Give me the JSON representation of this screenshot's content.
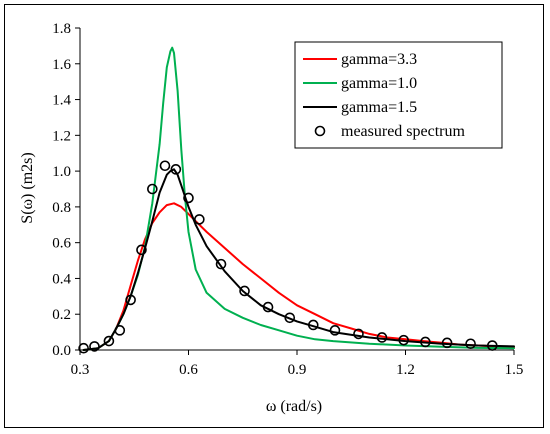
{
  "chart_data": {
    "type": "line",
    "title": "",
    "xlabel": "ω (rad/s)",
    "ylabel": "S(ω)  (m2s)",
    "xlim": [
      0.3,
      1.5
    ],
    "ylim": [
      0.0,
      1.8
    ],
    "xticks": [
      0.3,
      0.6,
      0.9,
      1.2,
      1.5
    ],
    "xtick_labels": [
      "0.3",
      "0.6",
      "0.9",
      "1.2",
      "1.5"
    ],
    "yticks": [
      0.0,
      0.2,
      0.4,
      0.6,
      0.8,
      1.0,
      1.2,
      1.4,
      1.6,
      1.8
    ],
    "ytick_labels": [
      "0.0",
      "0.2",
      "0.4",
      "0.6",
      "0.8",
      "1.0",
      "1.2",
      "1.4",
      "1.6",
      "1.8"
    ],
    "grid": false,
    "legend_position": "top-right",
    "series": [
      {
        "name": "gamma=3.3",
        "color": "#ff0000",
        "style": "line",
        "x": [
          0.31,
          0.35,
          0.38,
          0.4,
          0.42,
          0.44,
          0.46,
          0.48,
          0.5,
          0.52,
          0.54,
          0.56,
          0.58,
          0.6,
          0.62,
          0.65,
          0.7,
          0.75,
          0.8,
          0.85,
          0.9,
          0.95,
          1.0,
          1.05,
          1.1,
          1.15,
          1.2,
          1.25,
          1.3,
          1.35,
          1.4,
          1.45,
          1.5
        ],
        "y": [
          0.0,
          0.01,
          0.05,
          0.12,
          0.22,
          0.36,
          0.5,
          0.62,
          0.71,
          0.77,
          0.81,
          0.82,
          0.8,
          0.76,
          0.72,
          0.66,
          0.57,
          0.48,
          0.4,
          0.32,
          0.25,
          0.2,
          0.15,
          0.12,
          0.09,
          0.07,
          0.06,
          0.05,
          0.04,
          0.03,
          0.025,
          0.02,
          0.015
        ]
      },
      {
        "name": "gamma=1.0",
        "color": "#00b050",
        "style": "line",
        "x": [
          0.31,
          0.35,
          0.38,
          0.4,
          0.42,
          0.44,
          0.46,
          0.48,
          0.5,
          0.52,
          0.53,
          0.54,
          0.55,
          0.555,
          0.56,
          0.57,
          0.58,
          0.59,
          0.6,
          0.62,
          0.65,
          0.7,
          0.75,
          0.8,
          0.85,
          0.9,
          0.95,
          1.0,
          1.1,
          1.2,
          1.3,
          1.4,
          1.5
        ],
        "y": [
          0.0,
          0.01,
          0.05,
          0.12,
          0.2,
          0.3,
          0.42,
          0.58,
          0.82,
          1.15,
          1.38,
          1.58,
          1.67,
          1.69,
          1.66,
          1.45,
          1.12,
          0.86,
          0.66,
          0.45,
          0.32,
          0.23,
          0.18,
          0.14,
          0.11,
          0.08,
          0.06,
          0.05,
          0.035,
          0.025,
          0.018,
          0.012,
          0.01
        ]
      },
      {
        "name": "gamma=1.5",
        "color": "#000000",
        "style": "line",
        "x": [
          0.31,
          0.35,
          0.38,
          0.4,
          0.42,
          0.44,
          0.46,
          0.48,
          0.5,
          0.52,
          0.54,
          0.55,
          0.56,
          0.57,
          0.58,
          0.6,
          0.62,
          0.65,
          0.7,
          0.75,
          0.8,
          0.85,
          0.9,
          0.95,
          1.0,
          1.1,
          1.2,
          1.3,
          1.4,
          1.5
        ],
        "y": [
          0.0,
          0.01,
          0.05,
          0.12,
          0.2,
          0.3,
          0.43,
          0.57,
          0.72,
          0.88,
          0.98,
          1.0,
          1.01,
          0.98,
          0.92,
          0.8,
          0.7,
          0.58,
          0.44,
          0.33,
          0.25,
          0.2,
          0.16,
          0.13,
          0.1,
          0.07,
          0.05,
          0.035,
          0.025,
          0.02
        ]
      },
      {
        "name": "measured spectrum",
        "color": "#000000",
        "style": "marker",
        "marker": "open-circle",
        "x": [
          0.31,
          0.34,
          0.38,
          0.41,
          0.44,
          0.47,
          0.5,
          0.535,
          0.565,
          0.6,
          0.63,
          0.69,
          0.755,
          0.82,
          0.88,
          0.945,
          1.005,
          1.07,
          1.135,
          1.195,
          1.255,
          1.315,
          1.38,
          1.44
        ],
        "y": [
          0.01,
          0.02,
          0.05,
          0.11,
          0.28,
          0.56,
          0.9,
          1.03,
          1.01,
          0.85,
          0.73,
          0.48,
          0.33,
          0.24,
          0.18,
          0.14,
          0.11,
          0.09,
          0.07,
          0.055,
          0.045,
          0.04,
          0.035,
          0.025
        ]
      }
    ]
  }
}
